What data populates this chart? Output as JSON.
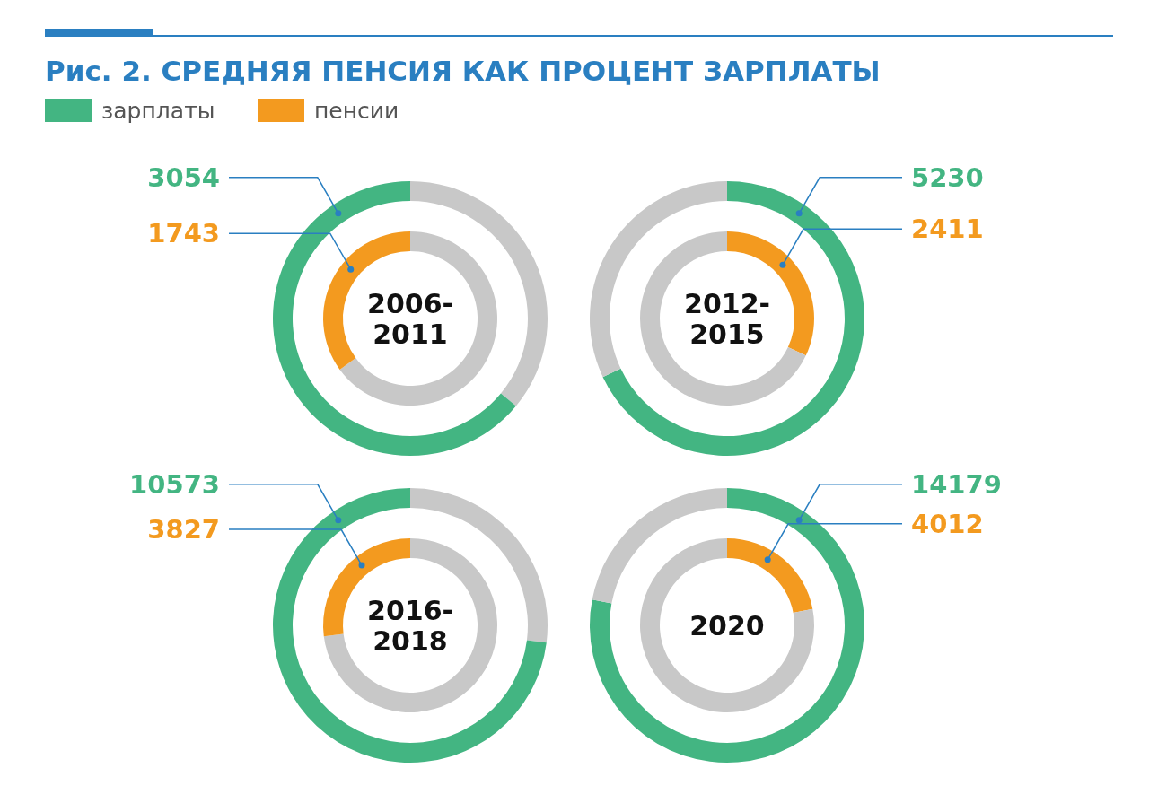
{
  "chart_data": [
    {
      "type": "donut",
      "title": "Рис. 2. СРЕДНЯЯ ПЕНСИЯ КАК ПРОЦЕНТ ЗАРПЛАТЫ",
      "subtitle": "2006-2011",
      "annotations": [
        "3054"
      ],
      "legend": "top left",
      "categories": [
        null,
        "зарплаты"
      ],
      "values": [
        36,
        64
      ],
      "colors": [
        "#c8c8c8",
        "#43b582"
      ]
    },
    {
      "type": "donut",
      "annotations": [
        "1743"
      ],
      "legend": "top left",
      "categories": [
        null,
        "пенсии"
      ],
      "values": [
        65,
        35
      ],
      "colors": [
        "#c8c8c8",
        "#f39a1f"
      ]
    },
    {
      "type": "donut",
      "subtitle": "2012-2015",
      "annotations": [
        "5230"
      ],
      "categories": [
        null,
        null
      ],
      "values": [
        68,
        32
      ],
      "colors": [
        "#43b582",
        "#c8c8c8"
      ]
    },
    {
      "type": "donut",
      "annotations": [
        "2411"
      ],
      "categories": [
        null,
        null
      ],
      "values": [
        32,
        68
      ],
      "colors": [
        "#f39a1f",
        "#c8c8c8"
      ]
    },
    {
      "type": "donut",
      "subtitle": "2016-2018",
      "annotations": [
        "10573"
      ],
      "categories": [
        null,
        null
      ],
      "values": [
        27,
        73
      ],
      "colors": [
        "#c8c8c8",
        "#43b582"
      ]
    },
    {
      "type": "donut",
      "annotations": [
        "3827"
      ],
      "categories": [
        null,
        null
      ],
      "values": [
        73,
        27
      ],
      "colors": [
        "#c8c8c8",
        "#f39a1f"
      ]
    },
    {
      "type": "donut",
      "subtitle": "2020",
      "annotations": [
        "14179"
      ],
      "categories": [
        null,
        null
      ],
      "values": [
        78,
        22
      ],
      "colors": [
        "#43b582",
        "#c8c8c8"
      ]
    },
    {
      "type": "donut",
      "annotations": [
        "4012"
      ],
      "categories": [
        null,
        null
      ],
      "values": [
        22,
        78
      ],
      "colors": [
        "#f39a1f",
        "#c8c8c8"
      ]
    }
  ]
}
